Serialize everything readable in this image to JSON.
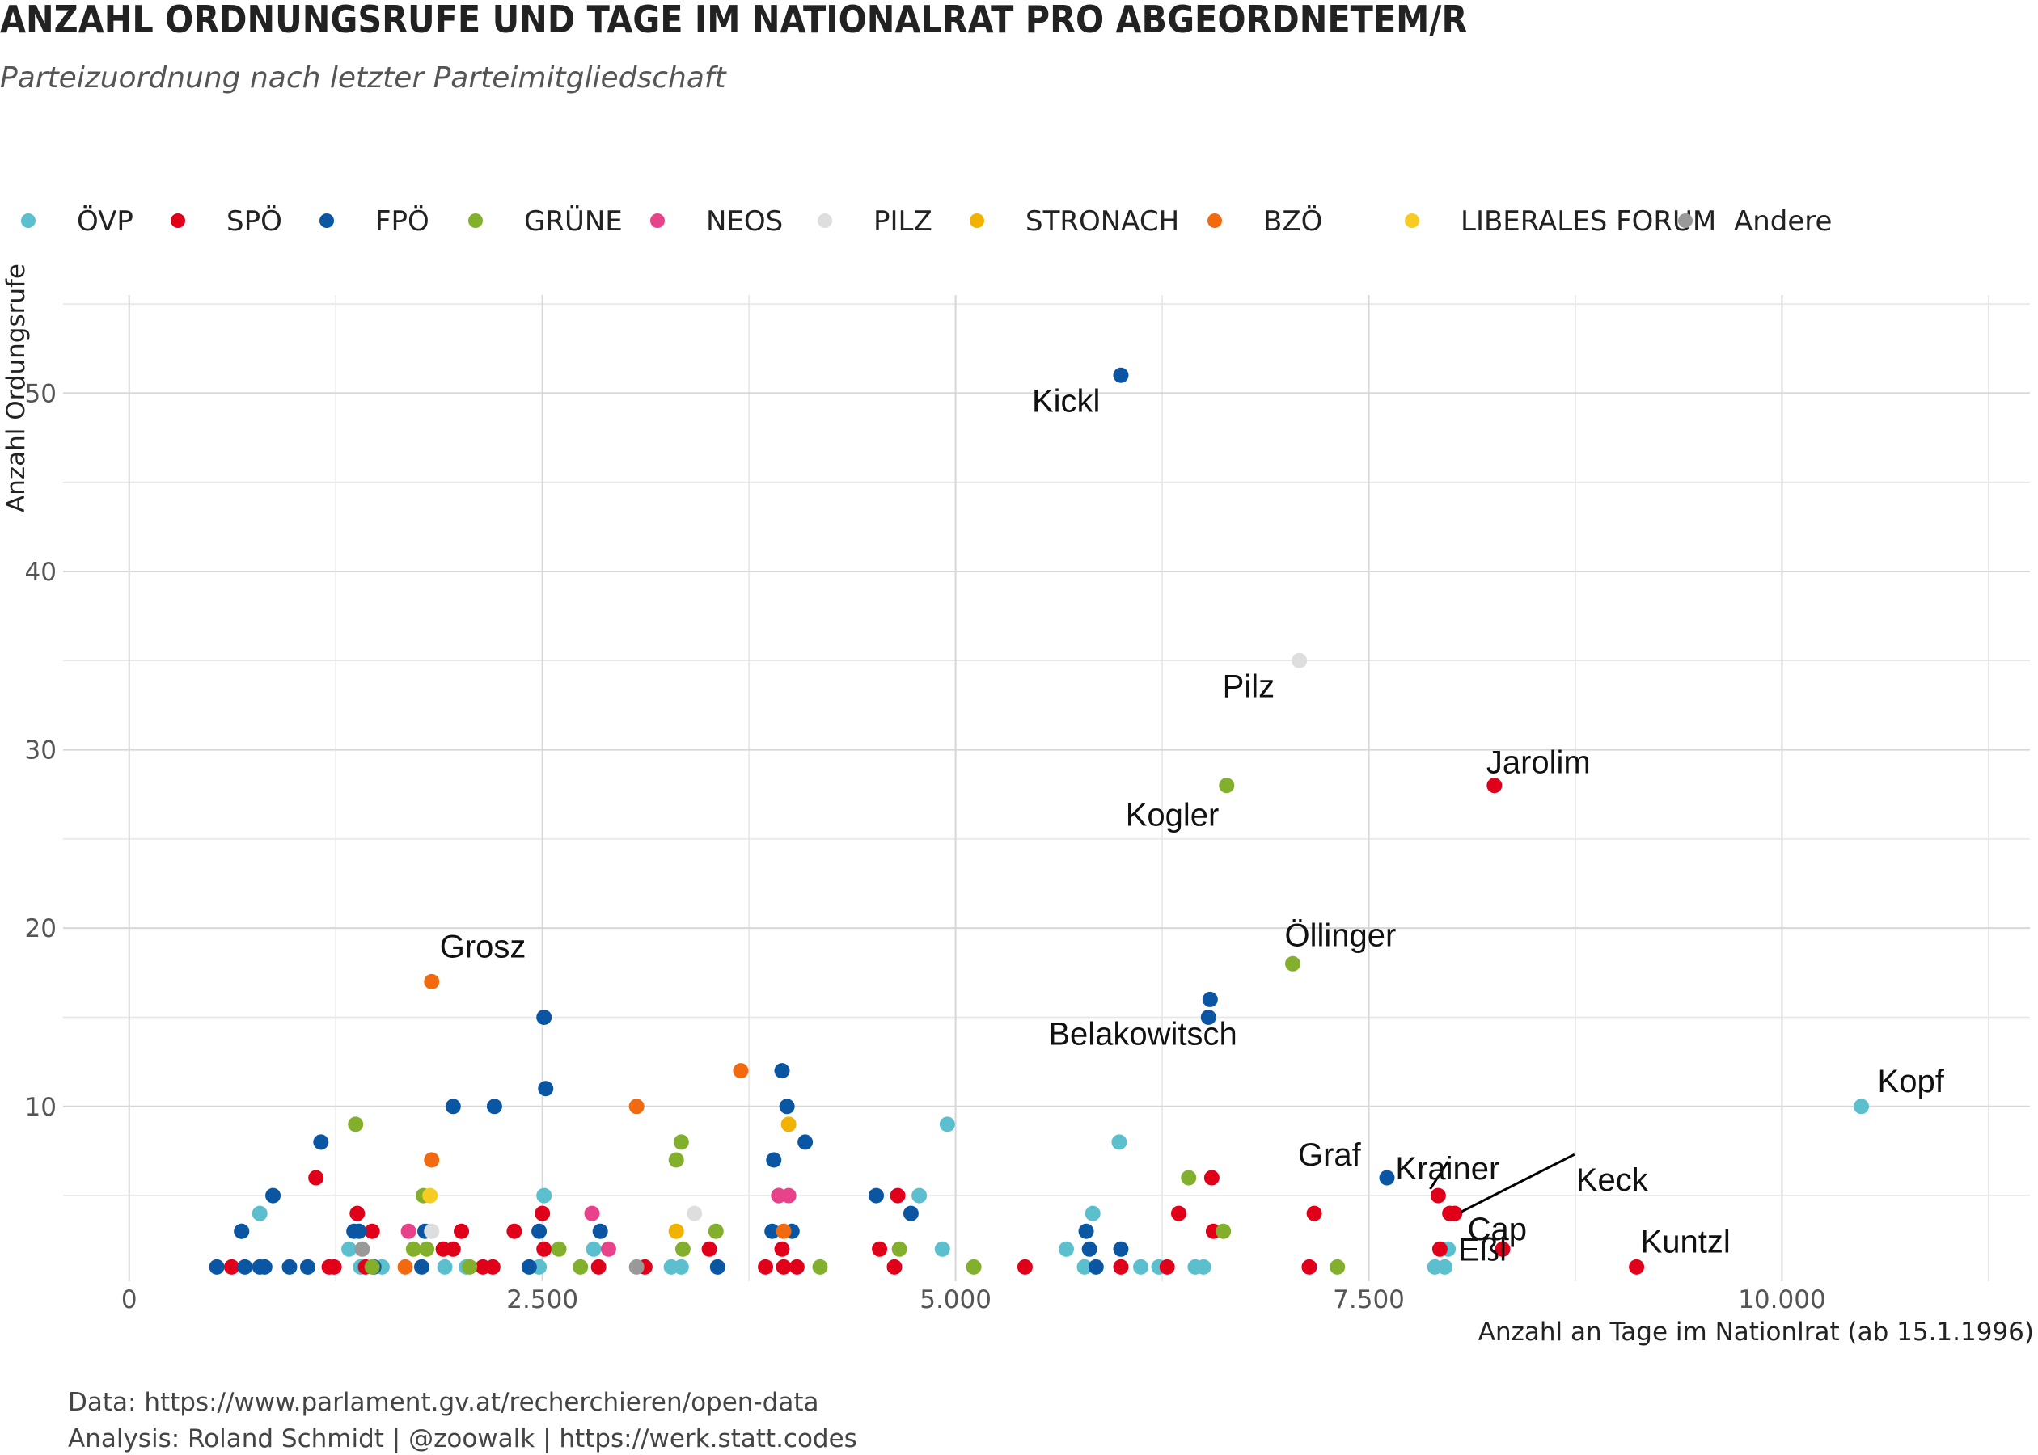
{
  "chart_data": {
    "type": "scatter",
    "title": "ANZAHL ORDNUNGSRUFE UND TAGE IM NATIONALRAT PRO ABGEORDNETEM/R",
    "subtitle": "Parteizuordnung nach letzter Parteimitgliedschaft",
    "xlabel": "Anzahl an Tage im Nationlrat (ab 15.1.1996)",
    "ylabel": "Anzahl Ordungsrufe",
    "xlim": [
      -400,
      11500
    ],
    "ylim": [
      0.2,
      55.5
    ],
    "x_ticks": [
      0,
      2500,
      5000,
      7500,
      10000
    ],
    "x_tick_labels": [
      "0",
      "2.500",
      "5.000",
      "7.500",
      "10.000"
    ],
    "y_ticks": [
      10,
      20,
      30,
      40,
      50
    ],
    "y_tick_labels": [
      "10",
      "20",
      "30",
      "40",
      "50"
    ],
    "grid": true,
    "legend_position": "top",
    "caption": [
      "Data: https://www.parlament.gv.at/recherchieren/open-data",
      "Analysis: Roland Schmidt | @zoowalk | https://werk.statt.codes"
    ],
    "parties": [
      {
        "name": "ÖVP",
        "color": "#5BBFCE"
      },
      {
        "name": "SPÖ",
        "color": "#E0001A"
      },
      {
        "name": "FPÖ",
        "color": "#0A56A3"
      },
      {
        "name": "GRÜNE",
        "color": "#83B02C"
      },
      {
        "name": "NEOS",
        "color": "#E8428A"
      },
      {
        "name": "PILZ",
        "color": "#DEDEDE"
      },
      {
        "name": "STRONACH",
        "color": "#F1B200"
      },
      {
        "name": "BZÖ",
        "color": "#F26A0F"
      },
      {
        "name": "LIBERALES FORUM",
        "color": "#F6CC20"
      },
      {
        "name": "Andere",
        "color": "#999999"
      }
    ],
    "series": [
      {
        "name": "ÖVP",
        "x": [
          680,
          790,
          1080,
          1330,
          1400,
          1530,
          1910,
          2040,
          2480,
          2510,
          2810,
          3280,
          3340,
          4780,
          4920,
          4950,
          5670,
          5780,
          5830,
          5990,
          6120,
          6230,
          6450,
          6500,
          7900,
          7960,
          7980,
          10480
        ],
        "y": [
          3,
          4,
          1,
          2,
          1,
          1,
          1,
          1,
          1,
          5,
          2,
          1,
          1,
          5,
          2,
          9,
          2,
          1,
          4,
          8,
          1,
          1,
          1,
          1,
          1,
          1,
          2,
          10
        ]
      },
      {
        "name": "SPÖ",
        "x": [
          620,
          1130,
          1210,
          1240,
          1380,
          1430,
          1470,
          1900,
          1960,
          2010,
          2140,
          2200,
          2330,
          2500,
          2510,
          2840,
          3120,
          3510,
          3850,
          3950,
          3960,
          4040,
          4540,
          4630,
          4650,
          5420,
          6000,
          6280,
          6350,
          6550,
          6560,
          7140,
          7170,
          7920,
          7930,
          7990,
          8020,
          8260,
          8310,
          9120
        ],
        "y": [
          1,
          6,
          1,
          1,
          4,
          1,
          3,
          2,
          2,
          3,
          1,
          1,
          3,
          4,
          2,
          1,
          1,
          2,
          1,
          2,
          1,
          1,
          2,
          1,
          5,
          1,
          1,
          1,
          4,
          6,
          3,
          1,
          4,
          5,
          2,
          4,
          4,
          28,
          2,
          1
        ]
      },
      {
        "name": "FPÖ",
        "x": [
          530,
          680,
          700,
          790,
          820,
          870,
          970,
          1080,
          1160,
          1360,
          1390,
          1480,
          1770,
          1790,
          1960,
          2210,
          2420,
          2480,
          2510,
          2520,
          2850,
          3560,
          3890,
          3900,
          3930,
          3950,
          3980,
          4010,
          4090,
          4520,
          4730,
          5790,
          5810,
          5850,
          6000,
          6000,
          6530,
          6540,
          7610
        ],
        "y": [
          1,
          3,
          1,
          1,
          1,
          5,
          1,
          1,
          8,
          3,
          3,
          1,
          1,
          3,
          10,
          10,
          1,
          3,
          15,
          11,
          3,
          1,
          3,
          7,
          5,
          12,
          10,
          3,
          8,
          5,
          4,
          3,
          2,
          1,
          2,
          51,
          15,
          16,
          6
        ]
      },
      {
        "name": "GRÜNE",
        "x": [
          1370,
          1470,
          1720,
          1780,
          1800,
          2060,
          2600,
          2730,
          3310,
          3340,
          3350,
          3550,
          4180,
          4660,
          5110,
          6410,
          6620,
          6640,
          7040,
          7310
        ],
        "y": [
          9,
          1,
          2,
          5,
          2,
          1,
          2,
          1,
          7,
          8,
          2,
          3,
          1,
          2,
          1,
          6,
          3,
          28,
          18,
          1
        ]
      },
      {
        "name": "NEOS",
        "x": [
          1690,
          2800,
          2900,
          3930,
          3990
        ],
        "y": [
          3,
          4,
          2,
          5,
          5
        ]
      },
      {
        "name": "PILZ",
        "x": [
          1830,
          3420,
          7080
        ],
        "y": [
          3,
          4,
          35
        ]
      },
      {
        "name": "STRONACH",
        "x": [
          3310,
          3990
        ],
        "y": [
          3,
          9
        ]
      },
      {
        "name": "BZÖ",
        "x": [
          1670,
          1830,
          1830,
          3070,
          3700,
          3960
        ],
        "y": [
          1,
          17,
          7,
          10,
          12,
          3
        ]
      },
      {
        "name": "LIBERALES FORUM",
        "x": [
          1820
        ],
        "y": [
          5
        ]
      },
      {
        "name": "Andere",
        "x": [
          1410,
          3070
        ],
        "y": [
          2,
          1
        ]
      }
    ],
    "annotations": [
      {
        "text": "Kickl",
        "x": 6000,
        "y": 51
      },
      {
        "text": "Pilz",
        "x": 7080,
        "y": 35
      },
      {
        "text": "Jarolim",
        "x": 8260,
        "y": 28
      },
      {
        "text": "Kogler",
        "x": 6640,
        "y": 28
      },
      {
        "text": "Grosz",
        "x": 1830,
        "y": 17
      },
      {
        "text": "Öllinger",
        "x": 7040,
        "y": 18
      },
      {
        "text": "Belakowitsch",
        "x": 6540,
        "y": 16
      },
      {
        "text": "Kopf",
        "x": 10480,
        "y": 10
      },
      {
        "text": "Graf",
        "x": 7610,
        "y": 6
      },
      {
        "text": "Krainer",
        "x": 7930,
        "y": 5
      },
      {
        "text": "Keck",
        "x": 8020,
        "y": 4
      },
      {
        "text": "Cap",
        "x": 7990,
        "y": 4
      },
      {
        "text": "Kuntzl",
        "x": 9120,
        "y": 1
      },
      {
        "text": "Eßl",
        "x": 8310,
        "y": 2
      }
    ]
  }
}
